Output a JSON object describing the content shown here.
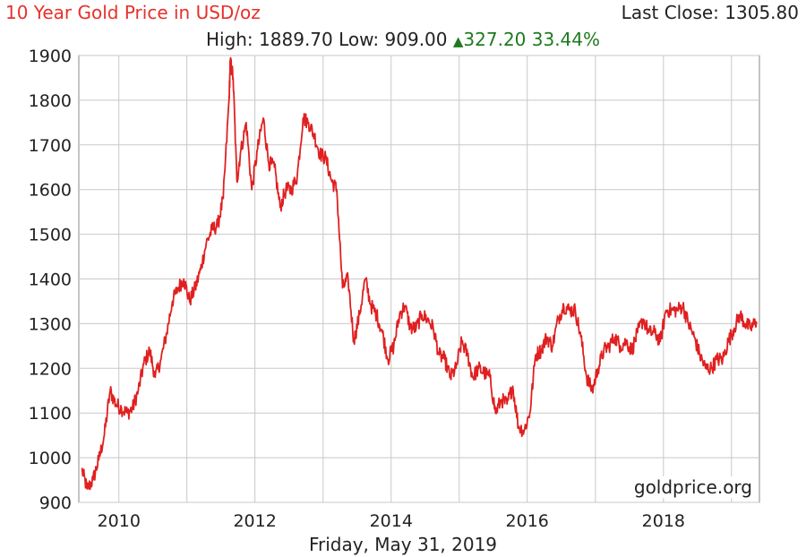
{
  "header": {
    "title": "10 Year Gold Price in USD/oz",
    "last_close_label": "Last Close:",
    "last_close_value": "1305.80",
    "high_label": "High:",
    "high_value": "1889.70",
    "low_label": "Low:",
    "low_value": "909.00",
    "change_value": "327.20",
    "change_percent": "33.44%",
    "change_icon": "up-triangle-icon"
  },
  "footer": {
    "date": "Friday, May 31, 2019"
  },
  "source": "goldprice.org",
  "colors": {
    "line": "#e02020",
    "grid": "#c8c8c8",
    "title": "#e8302a",
    "change": "#1e7a1e"
  },
  "chart_data": {
    "type": "line",
    "title": "10 Year Gold Price in USD/oz",
    "xlabel": "",
    "ylabel": "",
    "xlim": [
      "2009-05-31",
      "2019-05-31"
    ],
    "ylim": [
      900,
      1900
    ],
    "x_ticks": [
      "2010",
      "2012",
      "2014",
      "2016",
      "2018"
    ],
    "y_ticks": [
      900,
      1000,
      1100,
      1200,
      1300,
      1400,
      1500,
      1600,
      1700,
      1800,
      1900
    ],
    "grid": true,
    "series": [
      {
        "x": [
          "2009-06",
          "2009-07",
          "2009-08",
          "2009-09",
          "2009-10",
          "2009-11",
          "2009-12",
          "2010-01",
          "2010-02",
          "2010-03",
          "2010-04",
          "2010-05",
          "2010-06",
          "2010-07",
          "2010-08",
          "2010-09",
          "2010-10",
          "2010-11",
          "2010-12",
          "2011-01",
          "2011-02",
          "2011-03",
          "2011-04",
          "2011-05",
          "2011-06",
          "2011-07",
          "2011-08",
          "2011-08-22",
          "2011-09-06",
          "2011-09-26",
          "2011-10",
          "2011-11",
          "2011-12",
          "2012-01",
          "2012-02",
          "2012-03",
          "2012-04",
          "2012-05",
          "2012-06",
          "2012-07",
          "2012-08",
          "2012-09",
          "2012-10",
          "2012-11",
          "2012-12",
          "2013-01",
          "2013-02",
          "2013-03",
          "2013-04",
          "2013-05",
          "2013-06",
          "2013-07",
          "2013-08",
          "2013-09",
          "2013-10",
          "2013-11",
          "2013-12",
          "2014-01",
          "2014-02",
          "2014-03",
          "2014-04",
          "2014-05",
          "2014-06",
          "2014-07",
          "2014-08",
          "2014-09",
          "2014-10",
          "2014-11",
          "2014-12",
          "2015-01",
          "2015-02",
          "2015-03",
          "2015-04",
          "2015-05",
          "2015-06",
          "2015-07",
          "2015-08",
          "2015-09",
          "2015-10",
          "2015-11",
          "2015-12",
          "2016-01",
          "2016-02",
          "2016-03",
          "2016-04",
          "2016-05",
          "2016-06",
          "2016-07",
          "2016-08",
          "2016-09",
          "2016-10",
          "2016-11",
          "2016-12",
          "2017-01",
          "2017-02",
          "2017-03",
          "2017-04",
          "2017-05",
          "2017-06",
          "2017-07",
          "2017-08",
          "2017-09",
          "2017-10",
          "2017-11",
          "2017-12",
          "2018-01",
          "2018-02",
          "2018-03",
          "2018-04",
          "2018-05",
          "2018-06",
          "2018-07",
          "2018-08",
          "2018-09",
          "2018-10",
          "2018-11",
          "2018-12",
          "2019-01",
          "2019-02",
          "2019-03",
          "2019-04",
          "2019-05"
        ],
        "values": [
          975,
          930,
          950,
          995,
          1050,
          1150,
          1120,
          1110,
          1100,
          1110,
          1150,
          1210,
          1240,
          1180,
          1220,
          1280,
          1350,
          1380,
          1400,
          1350,
          1380,
          1420,
          1480,
          1510,
          1520,
          1580,
          1800,
          1890,
          1850,
          1620,
          1680,
          1750,
          1600,
          1690,
          1760,
          1660,
          1650,
          1560,
          1600,
          1600,
          1630,
          1760,
          1750,
          1720,
          1680,
          1670,
          1620,
          1600,
          1380,
          1400,
          1260,
          1320,
          1400,
          1340,
          1320,
          1280,
          1220,
          1250,
          1320,
          1340,
          1290,
          1290,
          1320,
          1310,
          1290,
          1230,
          1220,
          1180,
          1200,
          1260,
          1230,
          1180,
          1200,
          1190,
          1180,
          1100,
          1130,
          1120,
          1160,
          1070,
          1060,
          1100,
          1230,
          1240,
          1270,
          1250,
          1310,
          1340,
          1330,
          1330,
          1270,
          1180,
          1150,
          1200,
          1240,
          1250,
          1270,
          1250,
          1260,
          1240,
          1280,
          1310,
          1280,
          1280,
          1260,
          1330,
          1330,
          1330,
          1340,
          1300,
          1270,
          1230,
          1200,
          1200,
          1220,
          1220,
          1260,
          1290,
          1320,
          1300,
          1290,
          1305
        ]
      }
    ],
    "annotations": [
      "goldprice.org"
    ]
  }
}
